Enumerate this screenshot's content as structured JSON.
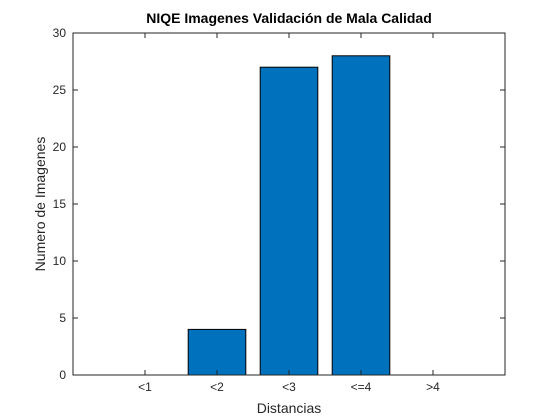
{
  "chart_data": {
    "type": "bar",
    "title": "NIQE Imagenes Validación de Mala Calidad",
    "xlabel": "Distancias",
    "ylabel": "Numero de Imagenes",
    "categories": [
      "<1",
      "<2",
      "<3",
      "<=4",
      ">4"
    ],
    "values": [
      0,
      4,
      27,
      28,
      0
    ],
    "ylim": [
      0,
      30
    ],
    "yticks": [
      0,
      5,
      10,
      15,
      20,
      25,
      30
    ],
    "grid": false,
    "legend": "none",
    "bar_color": "#0072BD",
    "bar_edge_color": "#000000"
  }
}
